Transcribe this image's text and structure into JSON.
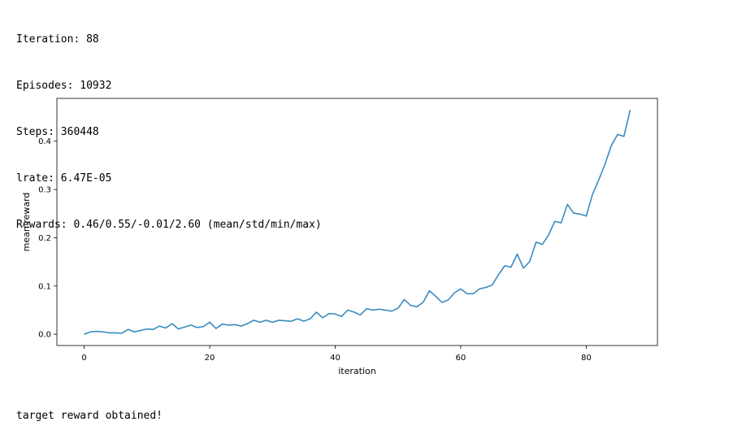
{
  "output": {
    "lines": [
      "Iteration: 88",
      "Episodes: 10932",
      "Steps: 360448",
      "lrate: 6.47E-05",
      "Rewards: 0.46/0.55/-0.01/2.60 (mean/std/min/max)"
    ],
    "footer": "target reward obtained!"
  },
  "chart_data": {
    "type": "line",
    "xlabel": "iteration",
    "ylabel": "mean reward",
    "xlim": [
      -4.35,
      91.35
    ],
    "ylim": [
      -0.0233,
      0.4888
    ],
    "xticks": [
      0,
      20,
      40,
      60,
      80
    ],
    "yticks": [
      0.0,
      0.1,
      0.2,
      0.3,
      0.4
    ],
    "ytick_labels": [
      "0.0",
      "0.1",
      "0.2",
      "0.3",
      "0.4"
    ],
    "grid": false,
    "line_color": "#3a8bc0",
    "series": [
      {
        "x": [
          0,
          1,
          2,
          3,
          4,
          5,
          6,
          7,
          8,
          9,
          10,
          11,
          12,
          13,
          14,
          15,
          16,
          17,
          18,
          19,
          20,
          21,
          22,
          23,
          24,
          25,
          26,
          27,
          28,
          29,
          30,
          31,
          32,
          33,
          34,
          35,
          36,
          37,
          38,
          39,
          40,
          41,
          42,
          43,
          44,
          45,
          46,
          47,
          48,
          49,
          50,
          51,
          52,
          53,
          54,
          55,
          56,
          57,
          58,
          59,
          60,
          61,
          62,
          63,
          64,
          65,
          66,
          67,
          68,
          69,
          70,
          71,
          72,
          73,
          74,
          75,
          76,
          77,
          78,
          79,
          80,
          81,
          82,
          83,
          84,
          85,
          86,
          87
        ],
        "values": [
          0.0,
          0.005,
          0.006,
          0.005,
          0.003,
          0.003,
          0.002,
          0.01,
          0.005,
          0.008,
          0.011,
          0.01,
          0.017,
          0.013,
          0.022,
          0.011,
          0.015,
          0.019,
          0.014,
          0.016,
          0.025,
          0.012,
          0.021,
          0.019,
          0.02,
          0.017,
          0.022,
          0.029,
          0.025,
          0.029,
          0.025,
          0.029,
          0.028,
          0.027,
          0.032,
          0.027,
          0.032,
          0.046,
          0.034,
          0.043,
          0.042,
          0.037,
          0.05,
          0.046,
          0.04,
          0.053,
          0.05,
          0.052,
          0.05,
          0.048,
          0.054,
          0.072,
          0.06,
          0.057,
          0.066,
          0.09,
          0.079,
          0.066,
          0.071,
          0.086,
          0.094,
          0.084,
          0.084,
          0.094,
          0.097,
          0.102,
          0.123,
          0.142,
          0.139,
          0.166,
          0.137,
          0.151,
          0.191,
          0.186,
          0.206,
          0.234,
          0.231,
          0.269,
          0.251,
          0.249,
          0.245,
          0.29,
          0.32,
          0.353,
          0.391,
          0.414,
          0.41,
          0.465
        ]
      }
    ]
  }
}
